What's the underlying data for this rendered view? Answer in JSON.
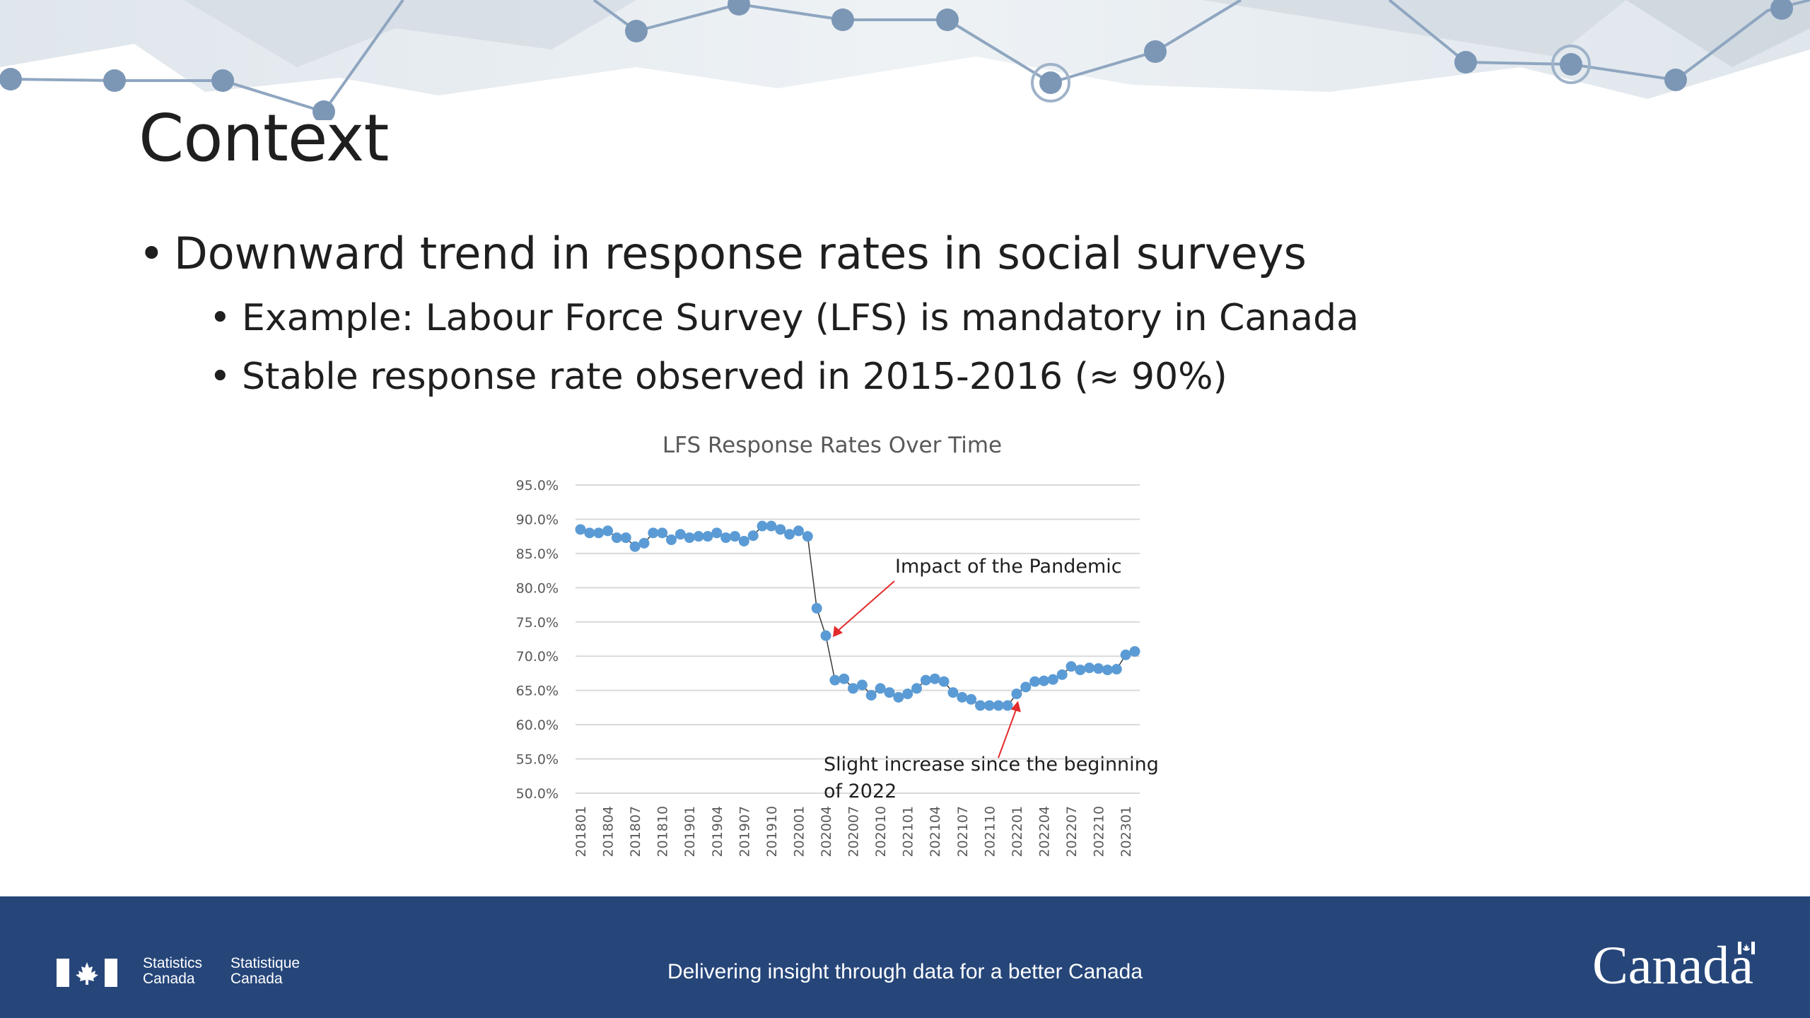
{
  "slide": {
    "title": "Context",
    "bullets": [
      "Downward trend in response rates in social surveys",
      "Example: Labour Force Survey (LFS) is mandatory in Canada",
      "Stable response rate observed in 2015-2016 (≈ 90%)"
    ]
  },
  "chart_data": {
    "type": "line",
    "title": "LFS Response Rates Over Time",
    "xlabel": "",
    "ylabel": "",
    "ylim": [
      50,
      95
    ],
    "yticks": [
      "95.0%",
      "90.0%",
      "85.0%",
      "80.0%",
      "75.0%",
      "70.0%",
      "65.0%",
      "60.0%",
      "55.0%",
      "50.0%"
    ],
    "x_tick_labels": [
      "201801",
      "201804",
      "201807",
      "201810",
      "201901",
      "201904",
      "201907",
      "201910",
      "202001",
      "202004",
      "202007",
      "202010",
      "202101",
      "202104",
      "202107",
      "202110",
      "202201",
      "202204",
      "202207",
      "202210",
      "202301"
    ],
    "grid": true,
    "legend": "none",
    "series_color": "#5b9bd5",
    "series": [
      {
        "values": [
          88.5,
          88.0,
          88.0,
          88.3,
          87.3,
          87.3,
          86.0,
          86.5,
          88.0,
          88.0,
          87.0,
          87.8,
          87.3,
          87.5,
          87.5,
          88.0,
          87.3,
          87.5,
          86.8,
          87.6,
          89.0,
          89.0,
          88.5,
          87.8,
          88.3,
          87.5,
          77.0,
          73.0,
          66.5,
          66.7,
          65.3,
          65.8,
          64.3,
          65.3,
          64.7,
          64.0,
          64.5,
          65.3,
          66.5,
          66.7,
          66.3,
          64.7,
          64.0,
          63.7,
          62.8,
          62.8,
          62.8,
          62.8,
          64.5,
          65.5,
          66.3,
          66.4,
          66.6,
          67.3,
          68.5,
          68.0,
          68.3,
          68.2,
          68.0,
          68.1,
          70.2,
          70.7
        ]
      }
    ],
    "annotations": [
      {
        "text": "Impact of the Pandemic",
        "point_index": 27,
        "arrow_color": "#e32b2b"
      },
      {
        "text_lines": [
          "Slight increase since the beginning",
          "of 2022"
        ],
        "point_index": 48,
        "arrow_color": "#e32b2b"
      }
    ]
  },
  "footer": {
    "agency_en": [
      "Statistics",
      "Canada"
    ],
    "agency_fr": [
      "Statistique",
      "Canada"
    ],
    "tagline": "Delivering insight through data for a better Canada",
    "wordmark": "Canada"
  }
}
